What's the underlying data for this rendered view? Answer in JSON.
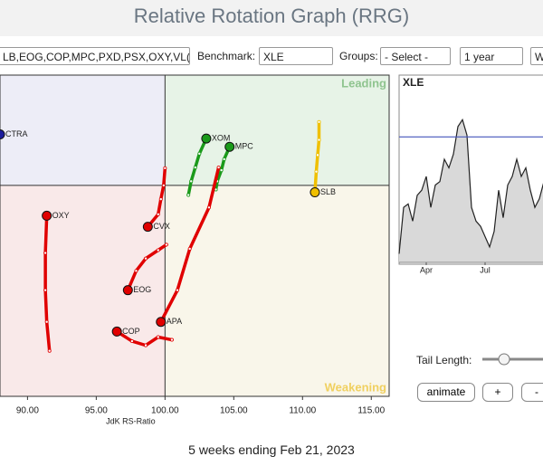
{
  "header": {
    "title": "Relative Rotation Graph (RRG)"
  },
  "controls": {
    "symbols": "LB,EOG,COP,MPC,PXD,PSX,OXY,VL(",
    "benchmark_label": "Benchmark:",
    "benchmark": "XLE",
    "groups_label": "Groups:",
    "groups": "- Select -",
    "period": "1 year",
    "frequency": "W",
    "tail_length_label": "Tail Length:",
    "buttons": [
      "animate",
      "+",
      "-"
    ]
  },
  "footer": "5 weeks ending Feb 21, 2023",
  "chart_data": [
    {
      "type": "rrg",
      "x_label": "JdK RS-Ratio",
      "quadrant_labels": {
        "leading": "Leading",
        "weakening": "Weakening"
      },
      "center": 100,
      "xlim": [
        88,
        116.3
      ],
      "ylim": [
        84.7,
        108
      ],
      "xticks": [
        {
          "value": 90,
          "label": "90.00"
        },
        {
          "value": 95,
          "label": "95.00"
        },
        {
          "value": 100,
          "label": "100.00"
        },
        {
          "value": 105,
          "label": "105.00"
        },
        {
          "value": 110,
          "label": "110.00"
        },
        {
          "value": 115,
          "label": "115.00"
        }
      ],
      "series": [
        {
          "name": "CTRA",
          "color": "#1c1c9c",
          "x": [
            88.0
          ],
          "y": [
            103.7
          ]
        },
        {
          "name": "XOM",
          "color": "#1a9a1a",
          "x": [
            101.7,
            101.9,
            102.2,
            102.5,
            103.0
          ],
          "y": [
            99.3,
            100.3,
            101.3,
            102.3,
            103.4
          ]
        },
        {
          "name": "MPC",
          "color": "#1a9a1a",
          "x": [
            103.7,
            103.8,
            104.1,
            104.3,
            104.7
          ],
          "y": [
            99.7,
            100.3,
            101.1,
            101.9,
            102.8
          ]
        },
        {
          "name": "SLB",
          "color": "#f0c000",
          "x": [
            111.2,
            111.2,
            111.1,
            111.0,
            110.9
          ],
          "y": [
            104.6,
            103.3,
            102.2,
            101.0,
            99.5
          ]
        },
        {
          "name": "OXY",
          "color": "#e00000",
          "x": [
            91.6,
            91.4,
            91.3,
            91.3,
            91.4
          ],
          "y": [
            88.0,
            90.1,
            92.4,
            95.1,
            97.8
          ]
        },
        {
          "name": "CVX",
          "color": "#e00000",
          "x": [
            100.0,
            99.9,
            99.7,
            99.5,
            98.75
          ],
          "y": [
            101.25,
            100.0,
            99.0,
            97.9,
            97.0
          ]
        },
        {
          "name": "EOG",
          "color": "#e00000",
          "x": [
            100.1,
            99.5,
            98.6,
            97.9,
            97.3
          ],
          "y": [
            95.7,
            95.3,
            94.7,
            93.8,
            92.4
          ]
        },
        {
          "name": "APA",
          "color": "#e00000",
          "x": [
            103.9,
            103.2,
            101.8,
            100.9,
            99.7
          ],
          "y": [
            101.3,
            98.4,
            95.4,
            92.4,
            90.1
          ]
        },
        {
          "name": "COP",
          "color": "#e00000",
          "x": [
            100.5,
            99.5,
            98.6,
            97.6,
            96.5
          ],
          "y": [
            88.8,
            89.0,
            88.4,
            88.7,
            89.4
          ]
        }
      ]
    },
    {
      "type": "area",
      "title": "XLE",
      "xlim": [
        0,
        31.8
      ],
      "ylim": [
        0,
        100
      ],
      "xticks": [
        {
          "value": 6,
          "label": "Apr"
        },
        {
          "value": 19,
          "label": "Jul"
        }
      ],
      "reference": 73,
      "values": [
        5,
        32,
        34,
        24,
        39,
        42,
        50,
        32,
        45,
        47,
        60,
        55,
        63,
        79,
        83,
        74,
        32,
        24,
        21,
        15,
        9,
        18,
        42,
        26,
        45,
        50,
        60,
        50,
        55,
        42,
        32,
        37,
        47
      ]
    }
  ]
}
